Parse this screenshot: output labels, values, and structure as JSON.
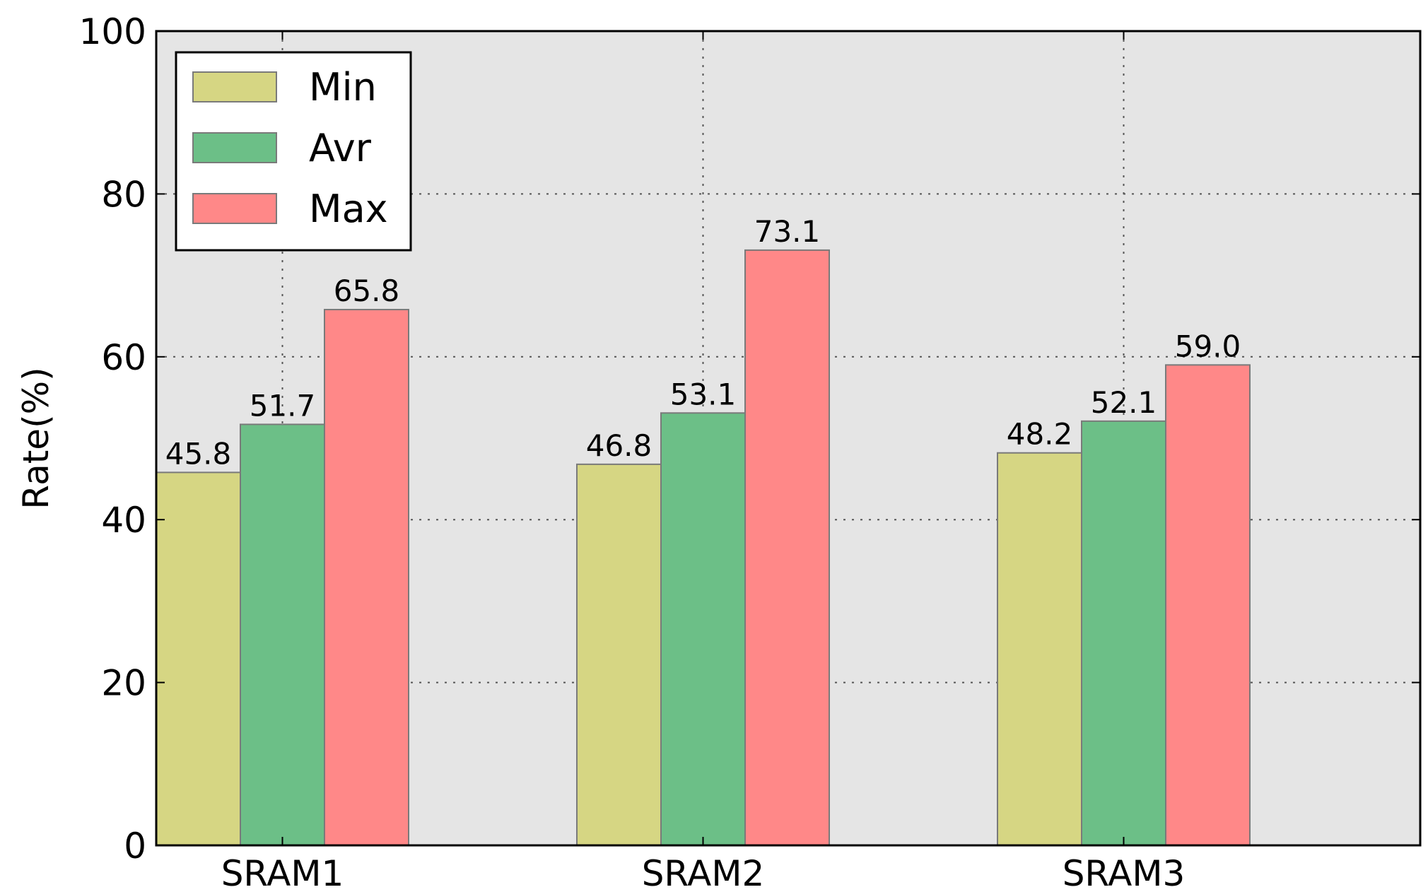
{
  "chart_data": {
    "type": "bar",
    "categories": [
      "SRAM1",
      "SRAM2",
      "SRAM3"
    ],
    "series": [
      {
        "name": "Min",
        "values": [
          45.8,
          46.8,
          48.2
        ],
        "labels": [
          "45.8",
          "46.8",
          "48.2"
        ],
        "color": "#d6d683"
      },
      {
        "name": "Avr",
        "values": [
          51.7,
          53.1,
          52.1
        ],
        "labels": [
          "51.7",
          "53.1",
          "52.1"
        ],
        "color": "#6cbf87"
      },
      {
        "name": "Max",
        "values": [
          65.8,
          73.1,
          59.0
        ],
        "labels": [
          "65.8",
          "73.1",
          "59.0"
        ],
        "color": "#ff8888"
      }
    ],
    "title": "",
    "xlabel": "",
    "ylabel": "Rate(%)",
    "ylim": [
      0,
      100
    ],
    "yticks": [
      "0",
      "20",
      "40",
      "60",
      "80",
      "100"
    ],
    "grid": true,
    "legend_position": "top-left",
    "plot_background": "#e5e5e5"
  }
}
